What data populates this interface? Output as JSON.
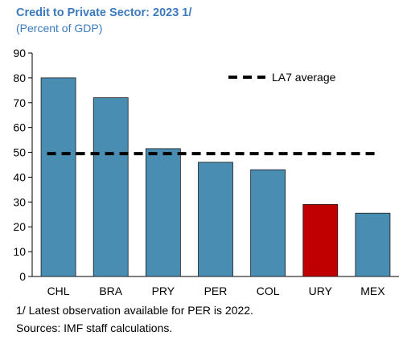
{
  "chart_data": {
    "type": "bar",
    "title": "Credit to Private Sector: 2023 1/",
    "subtitle": "(Percent of GDP)",
    "categories": [
      "CHL",
      "BRA",
      "PRY",
      "PER",
      "COL",
      "URY",
      "MEX"
    ],
    "values": [
      80,
      72,
      51.5,
      46,
      43,
      29,
      25.5
    ],
    "bar_colors": [
      "#4a8db3",
      "#4a8db3",
      "#4a8db3",
      "#4a8db3",
      "#4a8db3",
      "#c00000",
      "#4a8db3"
    ],
    "reference_line": {
      "name": "LA7 average",
      "value": 49.5,
      "style": "dashed",
      "color": "#000000"
    },
    "ylim": [
      0,
      90
    ],
    "yticks": [
      0,
      10,
      20,
      30,
      40,
      50,
      60,
      70,
      80,
      90
    ],
    "grid": false,
    "legend_position": "top-right"
  },
  "notes": {
    "footnote": "1/ Latest observation available for PER is 2022.",
    "source": "Sources: IMF staff calculations."
  }
}
